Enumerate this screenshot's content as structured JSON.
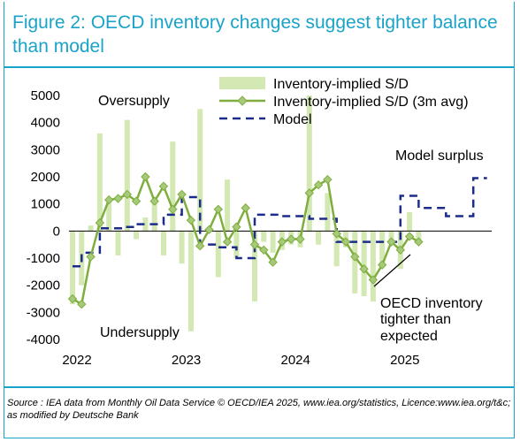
{
  "title": "Figure 2: OECD inventory changes suggest tighter balance than model",
  "source": "Source : IEA data from Monthly Oil Data Service © OECD/IEA 2025, www.iea.org/statistics, Licence:www.iea.org/t&c; as modified by Deutsche Bank",
  "colors": {
    "bars": "#d3e8b3",
    "line": "#7fae3e",
    "marker_fill": "#a6c97a",
    "model": "#1b2c8a",
    "accent": "#1aa3c8"
  },
  "chart_data": {
    "type": "bar",
    "yticks": [
      "5000",
      "4000",
      "3000",
      "2000",
      "1000",
      "0",
      "-1000",
      "-2000",
      "-3000",
      "-4000"
    ],
    "ylim": [
      -4000,
      5000
    ],
    "xticks": [
      {
        "label": "2022",
        "month": 0
      },
      {
        "label": "2023",
        "month": 12
      },
      {
        "label": "2024",
        "month": 24
      },
      {
        "label": "2025",
        "month": 36
      }
    ],
    "annotations": {
      "oversupply": "Oversupply",
      "undersupply": "Undersupply",
      "model_surplus": "Model surplus",
      "oecd_note": [
        "OECD inventory",
        "tighter than",
        "expected"
      ]
    },
    "legend": [
      "Inventory-implied S/D",
      "Inventory-implied S/D (3m avg)",
      "Model"
    ],
    "series": [
      {
        "name": "Inventory-implied S/D",
        "type": "bar",
        "values": [
          -2700,
          -2000,
          200,
          3600,
          1200,
          -900,
          4100,
          -300,
          500,
          1200,
          -900,
          3300,
          -1200,
          -3700,
          4500,
          0,
          -1700,
          1900,
          -1000,
          0,
          -2600,
          -400,
          -800,
          -700,
          -500,
          -600,
          5000,
          -500,
          1400,
          -1300,
          -600,
          -2300,
          -2400,
          -2600,
          -1300,
          -400,
          -1400,
          700,
          -400
        ]
      },
      {
        "name": "Inventory-implied S/D (3m avg)",
        "type": "line",
        "values": [
          -2500,
          -2700,
          -950,
          300,
          1150,
          1200,
          1350,
          1100,
          2000,
          1100,
          1650,
          800,
          1350,
          400,
          -550,
          50,
          800,
          -400,
          150,
          850,
          -500,
          -700,
          -1150,
          -400,
          -300,
          -300,
          1400,
          1700,
          1900,
          -100,
          -400,
          -950,
          -1400,
          -1800,
          -1250,
          -400,
          -700,
          -200,
          -400
        ]
      },
      {
        "name": "Model",
        "type": "line",
        "values": [
          -1300,
          -800,
          -800,
          100,
          100,
          100,
          150,
          250,
          250,
          250,
          600,
          600,
          1250,
          1250,
          -500,
          -500,
          -600,
          -600,
          -1000,
          -1000,
          600,
          600,
          600,
          550,
          550,
          550,
          450,
          450,
          450,
          -400,
          -400,
          -400,
          -400,
          -400,
          -400,
          -400,
          1300,
          1300,
          850,
          850,
          850,
          550,
          550,
          550,
          1950,
          1950
        ]
      }
    ]
  }
}
